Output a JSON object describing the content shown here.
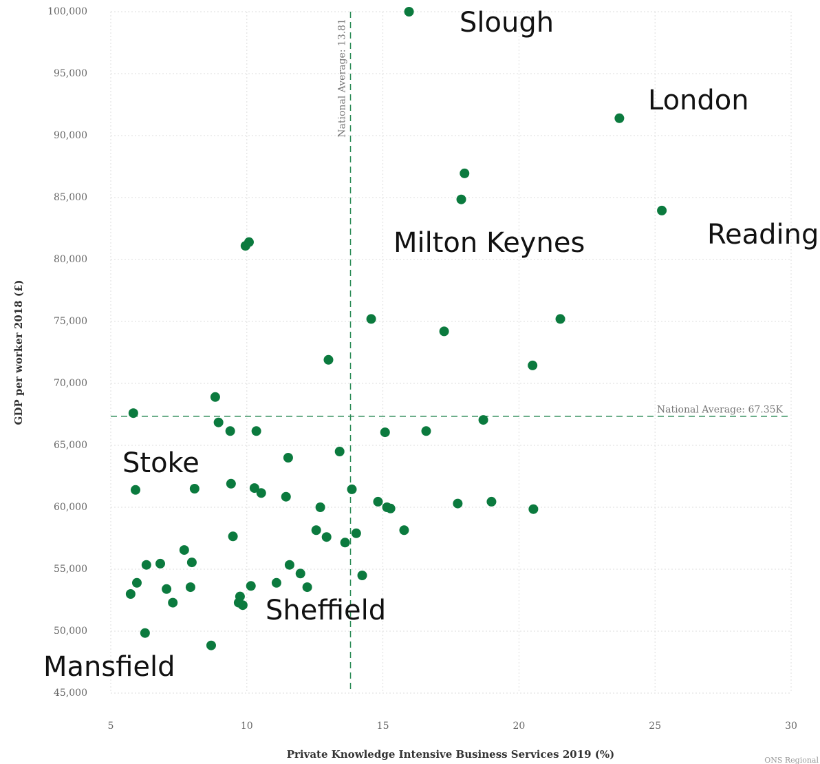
{
  "chart_data": {
    "type": "scatter",
    "x_label": "Private Knowledge Intensive Business Services 2019 (%)",
    "y_label": "GDP per worker 2018 (£)",
    "source": "ONS Regional",
    "color": "#0b7a3e",
    "grid": true,
    "xlim": [
      5,
      30
    ],
    "xticks": [
      5,
      10,
      15,
      20,
      25,
      30
    ],
    "ylim": [
      45000,
      100000
    ],
    "yticks": [
      {
        "value": 45000,
        "label": "45,000"
      },
      {
        "value": 50000,
        "label": "50,000"
      },
      {
        "value": 55000,
        "label": "55,000"
      },
      {
        "value": 60000,
        "label": "60,000"
      },
      {
        "value": 65000,
        "label": "65,000"
      },
      {
        "value": 70000,
        "label": "70,000"
      },
      {
        "value": 75000,
        "label": "75,000"
      },
      {
        "value": 80000,
        "label": "80,000"
      },
      {
        "value": 85000,
        "label": "85,000"
      },
      {
        "value": 90000,
        "label": "90,000"
      },
      {
        "value": 95000,
        "label": "95,000"
      },
      {
        "value": 100000,
        "label": "100,000"
      }
    ],
    "reference_lines": [
      {
        "axis": "x",
        "value": 13.81,
        "label": "National Average: 13.81"
      },
      {
        "axis": "y",
        "value": 67350,
        "label": "National Average: 67.35K"
      }
    ],
    "annotations": [
      "Slough",
      "London",
      "Reading",
      "Milton Keynes",
      "Stoke",
      "Sheffield",
      "Mansfield"
    ],
    "x": [
      15.96,
      23.69,
      18.0,
      17.88,
      25.25,
      10.08,
      9.95,
      14.57,
      21.52,
      17.25,
      13.0,
      20.5,
      8.84,
      5.83,
      18.69,
      8.96,
      9.39,
      10.35,
      15.08,
      16.59,
      13.41,
      11.52,
      5.91,
      8.08,
      9.42,
      10.28,
      10.53,
      11.44,
      13.86,
      12.7,
      14.82,
      15.15,
      15.28,
      17.75,
      18.99,
      20.53,
      12.55,
      12.93,
      14.02,
      13.61,
      15.78,
      9.49,
      7.7,
      7.98,
      6.31,
      6.82,
      11.57,
      11.97,
      14.24,
      5.96,
      11.09,
      7.93,
      10.15,
      12.22,
      7.05,
      5.73,
      9.75,
      7.28,
      9.7,
      9.85,
      6.26,
      8.69
    ],
    "values": [
      100000,
      91400,
      86950,
      84850,
      83950,
      81400,
      81100,
      75200,
      75200,
      74200,
      71900,
      71450,
      68900,
      67600,
      67050,
      66850,
      66150,
      66150,
      66050,
      66150,
      64500,
      64000,
      61400,
      61500,
      61900,
      61550,
      61150,
      60850,
      61450,
      60000,
      60450,
      60000,
      59900,
      60300,
      60450,
      59850,
      58150,
      57600,
      57900,
      57150,
      58150,
      57650,
      56550,
      55550,
      55350,
      55450,
      55350,
      54650,
      54500,
      53900,
      53900,
      53550,
      53650,
      53550,
      53400,
      53000,
      52800,
      52300,
      52300,
      52100,
      49850,
      48850
    ]
  }
}
